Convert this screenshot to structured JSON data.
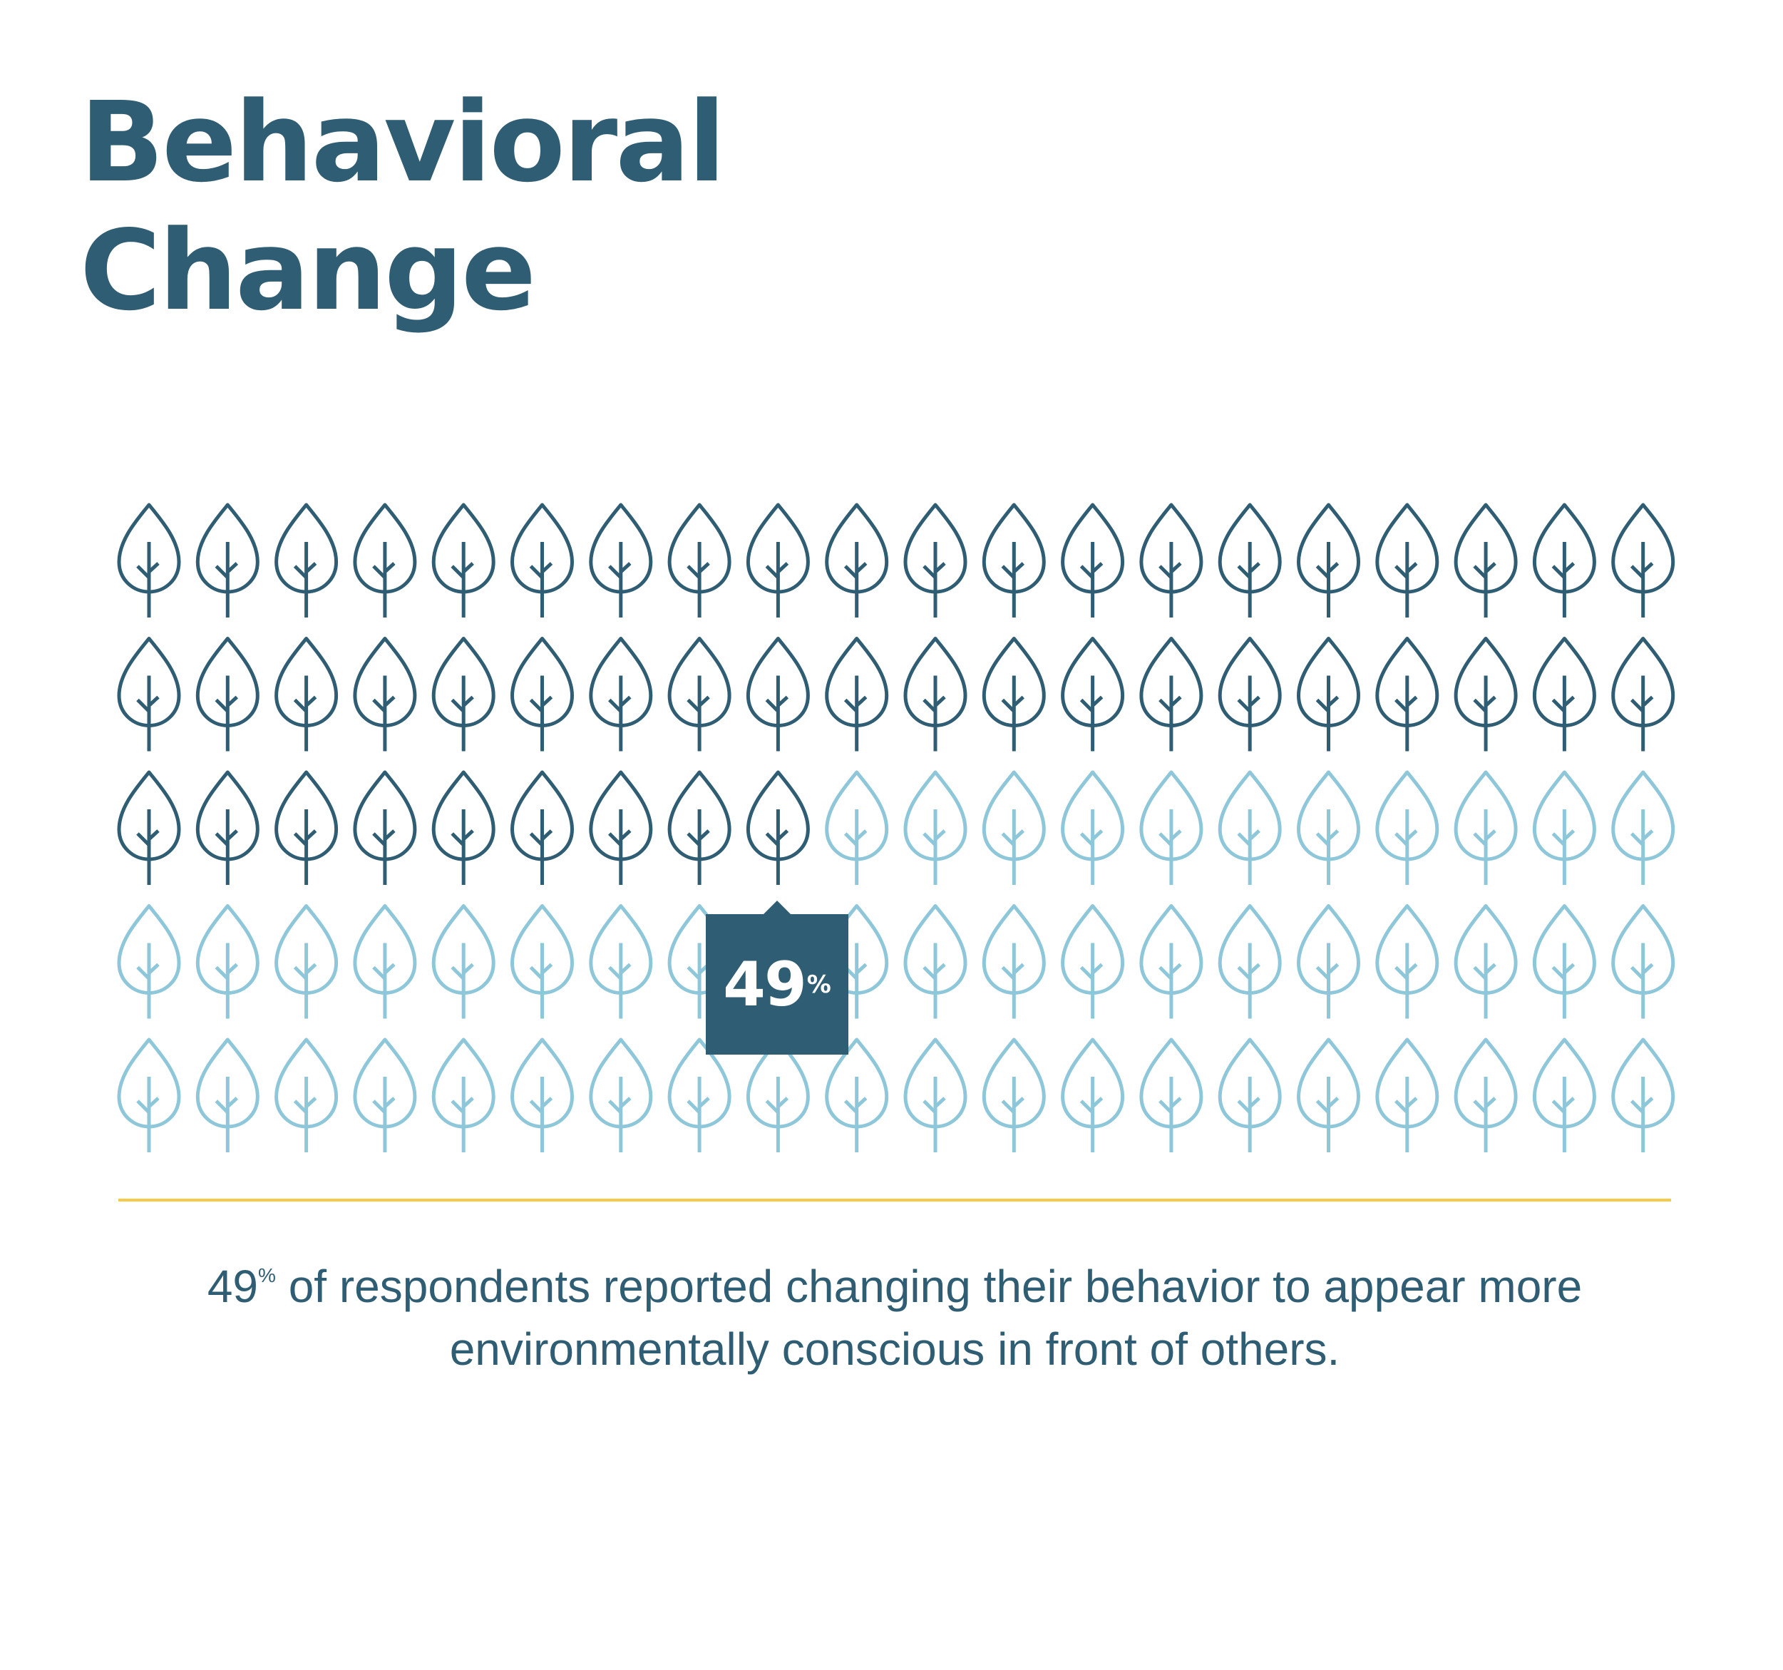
{
  "title": {
    "line1": "Behavioral",
    "line2": "Change"
  },
  "chart_data": {
    "type": "pictograph",
    "icon": "tree-leaf-icon",
    "rows": 5,
    "columns": 20,
    "total_icons": 100,
    "highlighted_percent": 49,
    "highlighted_icons": 49,
    "callout": {
      "value": "49",
      "unit": "%"
    },
    "colors": {
      "highlighted": "#2f5d73",
      "remaining": "#8ec7da"
    }
  },
  "divider_color": "#f7c948",
  "caption": {
    "percent_value": "49",
    "percent_unit": "%",
    "text_line1": " of respondents reported changing their behavior to appear more",
    "text_line2": "environmentally conscious in front of others."
  }
}
